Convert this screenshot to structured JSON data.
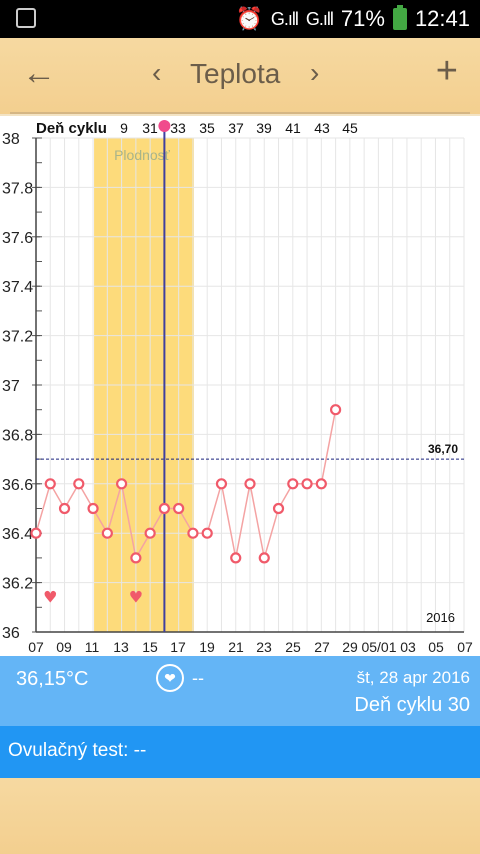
{
  "statusbar": {
    "battery": "71%",
    "time": "12:41",
    "signal1": "G.ıll",
    "signal2": "G.ıll"
  },
  "appbar": {
    "title": "Teplota",
    "back_icon": "back-arrow-icon",
    "prev_icon": "chevron-left-icon",
    "next_icon": "chevron-right-icon",
    "add_icon": "add-icon",
    "back_glyph": "←",
    "prev_glyph": "‹",
    "next_glyph": "›",
    "add_glyph": "+"
  },
  "chart_data": {
    "type": "line",
    "cycle_label": "Deň cyklu",
    "top_ticks": [
      "9",
      "31",
      "33",
      "35",
      "37",
      "39",
      "41",
      "43",
      "45"
    ],
    "yticks": [
      "38",
      "37.8",
      "37.6",
      "37.4",
      "37.2",
      "37",
      "36.8",
      "36.6",
      "36.4",
      "36.2",
      "36"
    ],
    "ylim": [
      36,
      38
    ],
    "xticks": [
      "07",
      "09",
      "11",
      "13",
      "15",
      "17",
      "19",
      "21",
      "23",
      "25",
      "27",
      "29",
      "05/01",
      "03",
      "05",
      "07"
    ],
    "fertile_label": "Plodnosť",
    "year_label": "2016",
    "coverline": 36.7,
    "coverline_label": "36,70",
    "series": [
      {
        "values": [
          36.4,
          36.6,
          36.5,
          36.6,
          36.5,
          36.4,
          36.6,
          36.3,
          36.4,
          36.5,
          36.5,
          36.4,
          36.4,
          36.6,
          36.3,
          36.6,
          36.3,
          36.5,
          36.6,
          36.6,
          36.6,
          36.9
        ]
      }
    ],
    "fertile_window": [
      11,
      18
    ],
    "current_day_index": 9,
    "heart_days": [
      1,
      7
    ],
    "colors": {
      "line": "#f4a3a3",
      "marker": "#f05a6a",
      "fertile": "#fddb7b",
      "coverline": "#1a237e",
      "current": "#3f3f9f"
    }
  },
  "info": {
    "temp": "36,15°C",
    "heart_value": "--",
    "heart_icon": "heart-circle-icon",
    "heart_glyph": "❤",
    "date": "št, 28 apr 2016",
    "cycle_day": "Deň cyklu 30"
  },
  "ovulation": {
    "label": "Ovulačný test: --"
  }
}
